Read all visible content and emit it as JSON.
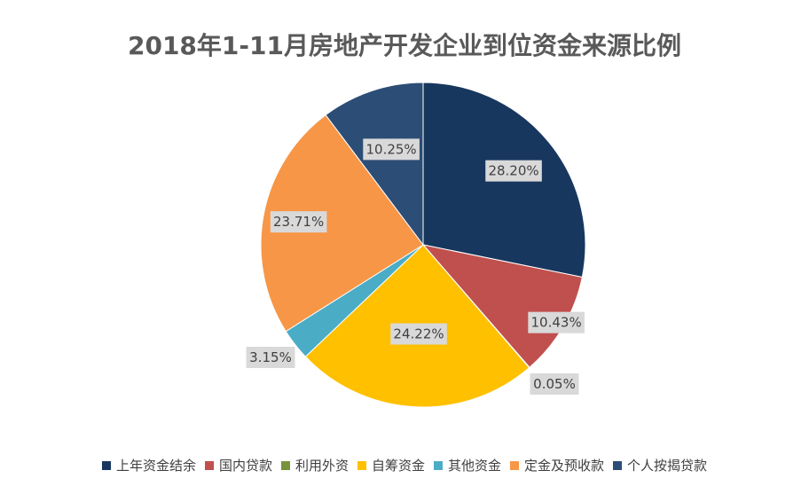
{
  "chart_data": {
    "type": "pie",
    "title": "2018年1-11月房地产开发企业到位资金来源比例",
    "legend_position": "bottom",
    "slices": [
      {
        "name": "上年资金结余",
        "value": 28.2,
        "label": "28.20%",
        "color": "#17375e"
      },
      {
        "name": "国内贷款",
        "value": 10.43,
        "label": "10.43%",
        "color": "#c0504d"
      },
      {
        "name": "利用外资",
        "value": 0.05,
        "label": "0.05%",
        "color": "#77933c"
      },
      {
        "name": "自筹资金",
        "value": 24.22,
        "label": "24.22%",
        "color": "#ffc000"
      },
      {
        "name": "其他资金",
        "value": 3.15,
        "label": "3.15%",
        "color": "#4bacc6"
      },
      {
        "name": "定金及预收款",
        "value": 23.71,
        "label": "23.71%",
        "color": "#f79646"
      },
      {
        "name": "个人按揭贷款",
        "value": 10.25,
        "label": "10.25%",
        "color": "#2c4d75"
      }
    ]
  }
}
